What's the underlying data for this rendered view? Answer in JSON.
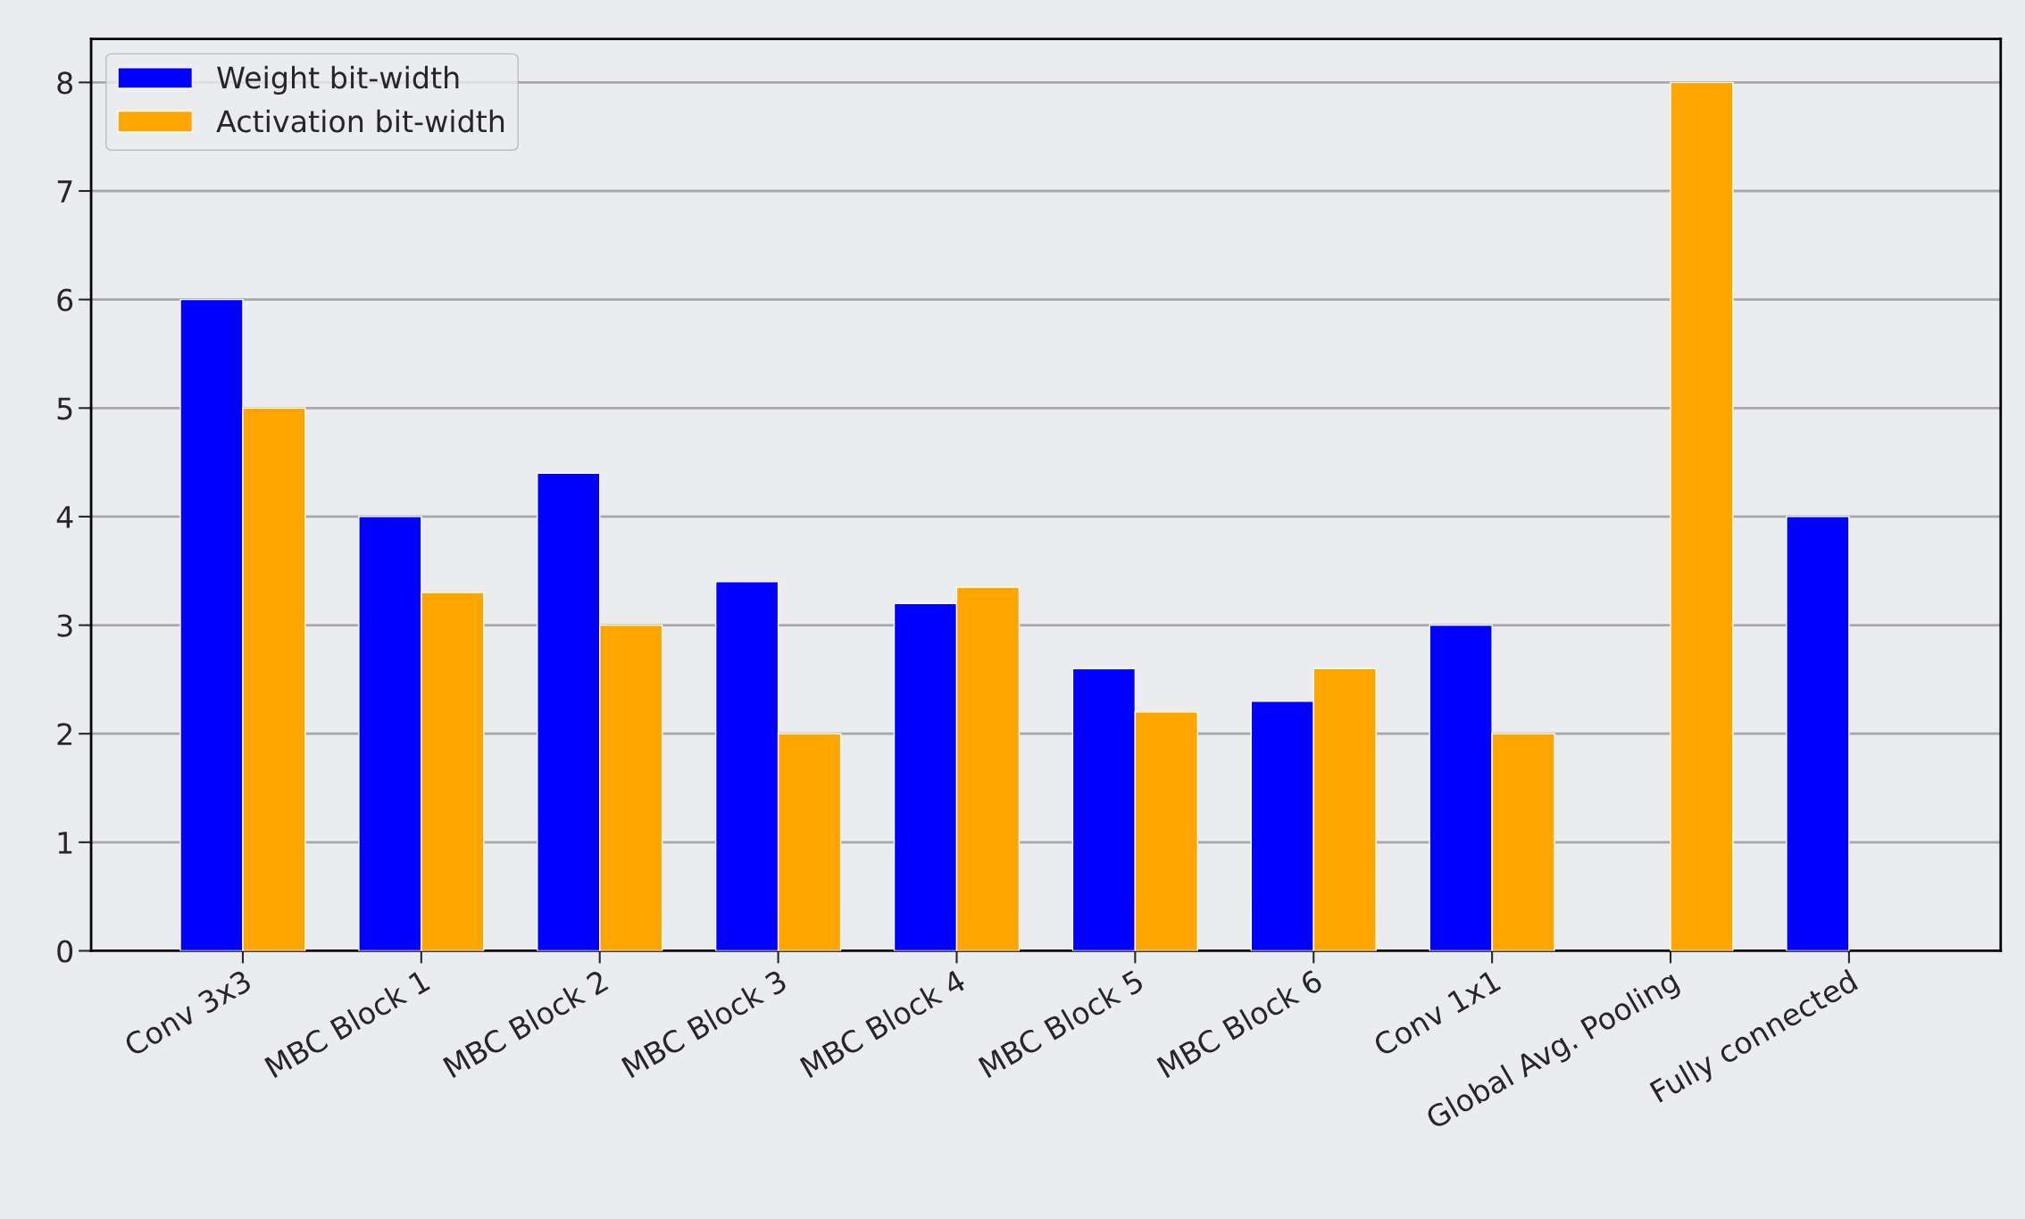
{
  "chart_data": {
    "type": "bar",
    "categories": [
      "Conv 3x3",
      "MBC Block 1",
      "MBC Block 2",
      "MBC Block 3",
      "MBC Block 4",
      "MBC Block 5",
      "MBC Block 6",
      "Conv 1x1",
      "Global Avg. Pooling",
      "Fully connected"
    ],
    "series": [
      {
        "name": "Weight bit-width",
        "color": "#0000ff",
        "values": [
          6,
          4,
          4.4,
          3.4,
          3.2,
          2.6,
          2.3,
          3,
          null,
          4
        ]
      },
      {
        "name": "Activation bit-width",
        "color": "#ffa500",
        "values": [
          5,
          3.3,
          3,
          2,
          3.35,
          2.2,
          2.6,
          2,
          8,
          null
        ]
      }
    ],
    "ylim": [
      0,
      8.4
    ],
    "yticks": [
      0,
      1,
      2,
      3,
      4,
      5,
      6,
      7,
      8
    ],
    "grid": "y",
    "legend": "top left"
  }
}
